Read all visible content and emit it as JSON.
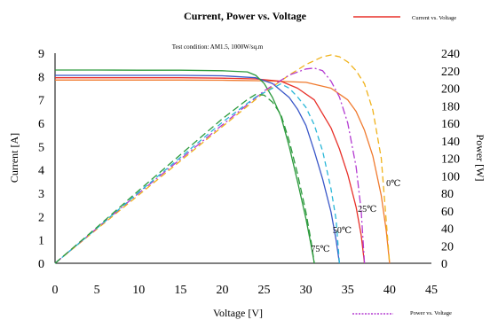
{
  "chart_data": {
    "type": "line",
    "title": "Current, Power vs. Voltage",
    "annotation": "Test condition: AM1.5, 1000W/sq.m",
    "xlabel": "Voltage [V]",
    "ylabel_left": "Current [A]",
    "ylabel_right": "Power [W]",
    "xlim": [
      0,
      45
    ],
    "ylim_left": [
      0,
      9
    ],
    "ylim_right": [
      0,
      240
    ],
    "x_ticks": [
      0,
      5,
      10,
      15,
      20,
      25,
      30,
      35,
      40,
      45
    ],
    "y_left_ticks": [
      0,
      1,
      2,
      3,
      4,
      5,
      6,
      7,
      8,
      9
    ],
    "y_right_ticks": [
      0,
      20,
      40,
      60,
      80,
      100,
      120,
      140,
      160,
      180,
      200,
      220,
      240
    ],
    "grid": false,
    "legend": [
      {
        "label": "Current vs. Voltage",
        "color": "#e8312a",
        "style": "solid",
        "placement": "top-right"
      },
      {
        "label": "Power vs. Voltage",
        "color": "#b43bd1",
        "style": "dashed",
        "placement": "bottom-right"
      }
    ],
    "temperature_labels": [
      {
        "text": "0℃",
        "v": 39.6,
        "i": 3.3
      },
      {
        "text": "25℃",
        "v": 36.2,
        "i": 2.2
      },
      {
        "text": "50℃",
        "v": 33.2,
        "i": 1.3
      },
      {
        "text": "75℃",
        "v": 30.6,
        "i": 0.5
      }
    ],
    "series": [
      {
        "kind": "current",
        "temperature": "0℃",
        "color": "#f07a2e",
        "dash": "",
        "points": [
          [
            0,
            7.85
          ],
          [
            5,
            7.85
          ],
          [
            10,
            7.85
          ],
          [
            15,
            7.85
          ],
          [
            20,
            7.84
          ],
          [
            25,
            7.82
          ],
          [
            30,
            7.75
          ],
          [
            33,
            7.5
          ],
          [
            35,
            7.0
          ],
          [
            36,
            6.5
          ],
          [
            37,
            5.7
          ],
          [
            38,
            4.6
          ],
          [
            39,
            2.9
          ],
          [
            39.6,
            1.4
          ],
          [
            40,
            0
          ]
        ]
      },
      {
        "kind": "current",
        "temperature": "25℃",
        "color": "#e8312a",
        "dash": "",
        "points": [
          [
            0,
            7.95
          ],
          [
            5,
            7.95
          ],
          [
            10,
            7.95
          ],
          [
            15,
            7.95
          ],
          [
            20,
            7.93
          ],
          [
            24,
            7.9
          ],
          [
            27,
            7.8
          ],
          [
            29,
            7.5
          ],
          [
            31,
            7.0
          ],
          [
            33,
            5.8
          ],
          [
            34,
            4.9
          ],
          [
            35,
            3.8
          ],
          [
            36,
            2.4
          ],
          [
            36.6,
            1.2
          ],
          [
            37,
            0
          ]
        ]
      },
      {
        "kind": "current",
        "temperature": "50℃",
        "color": "#3a57c8",
        "dash": "",
        "points": [
          [
            0,
            8.05
          ],
          [
            5,
            8.05
          ],
          [
            10,
            8.05
          ],
          [
            15,
            8.05
          ],
          [
            20,
            8.03
          ],
          [
            24,
            7.95
          ],
          [
            26,
            7.7
          ],
          [
            28,
            7.1
          ],
          [
            29,
            6.6
          ],
          [
            30,
            5.9
          ],
          [
            31,
            4.8
          ],
          [
            32,
            3.6
          ],
          [
            33,
            2.2
          ],
          [
            33.6,
            1.0
          ],
          [
            34,
            0
          ]
        ]
      },
      {
        "kind": "current",
        "temperature": "75℃",
        "color": "#2c9a3c",
        "dash": "",
        "points": [
          [
            0,
            8.28
          ],
          [
            5,
            8.28
          ],
          [
            10,
            8.27
          ],
          [
            15,
            8.27
          ],
          [
            20,
            8.25
          ],
          [
            23,
            8.2
          ],
          [
            24,
            8.05
          ],
          [
            25,
            7.7
          ],
          [
            26,
            7.1
          ],
          [
            27,
            6.3
          ],
          [
            28,
            5.0
          ],
          [
            29,
            3.5
          ],
          [
            30,
            1.9
          ],
          [
            30.6,
            0.8
          ],
          [
            31,
            0
          ]
        ]
      },
      {
        "kind": "power",
        "temperature": "0℃",
        "color": "#f0b21a",
        "dash": "7,4",
        "points": [
          [
            0,
            0
          ],
          [
            5,
            39
          ],
          [
            10,
            78
          ],
          [
            15,
            117
          ],
          [
            20,
            156
          ],
          [
            25,
            195
          ],
          [
            28,
            215
          ],
          [
            30,
            227
          ],
          [
            32,
            236
          ],
          [
            33,
            238
          ],
          [
            34,
            236
          ],
          [
            35,
            230
          ],
          [
            36,
            220
          ],
          [
            37,
            205
          ],
          [
            38,
            175
          ],
          [
            39,
            120
          ],
          [
            40,
            0
          ]
        ]
      },
      {
        "kind": "power",
        "temperature": "25℃",
        "color": "#b43bd1",
        "dash": "9,3,2,3",
        "points": [
          [
            0,
            0
          ],
          [
            5,
            40
          ],
          [
            10,
            80
          ],
          [
            15,
            119
          ],
          [
            20,
            158
          ],
          [
            25,
            197
          ],
          [
            28,
            215
          ],
          [
            30,
            222
          ],
          [
            31,
            223
          ],
          [
            32,
            220
          ],
          [
            33,
            208
          ],
          [
            34,
            190
          ],
          [
            35,
            160
          ],
          [
            36,
            110
          ],
          [
            36.6,
            60
          ],
          [
            37,
            0
          ]
        ]
      },
      {
        "kind": "power",
        "temperature": "50℃",
        "color": "#2ab7d8",
        "dash": "6,4",
        "points": [
          [
            0,
            0
          ],
          [
            5,
            40
          ],
          [
            10,
            81
          ],
          [
            15,
            121
          ],
          [
            20,
            161
          ],
          [
            24,
            190
          ],
          [
            26,
            200
          ],
          [
            27,
            205
          ],
          [
            28,
            200
          ],
          [
            29,
            190
          ],
          [
            30,
            178
          ],
          [
            31,
            158
          ],
          [
            32,
            128
          ],
          [
            33,
            85
          ],
          [
            33.6,
            50
          ],
          [
            34,
            0
          ]
        ]
      },
      {
        "kind": "power",
        "temperature": "75℃",
        "color": "#2c9a3c",
        "dash": "8,4",
        "points": [
          [
            0,
            0
          ],
          [
            5,
            41
          ],
          [
            10,
            83
          ],
          [
            15,
            124
          ],
          [
            20,
            165
          ],
          [
            23,
            187
          ],
          [
            24,
            193
          ],
          [
            25,
            192
          ],
          [
            26,
            184
          ],
          [
            27,
            170
          ],
          [
            28,
            140
          ],
          [
            29,
            102
          ],
          [
            30,
            58
          ],
          [
            30.6,
            26
          ],
          [
            31,
            0
          ]
        ]
      }
    ]
  }
}
